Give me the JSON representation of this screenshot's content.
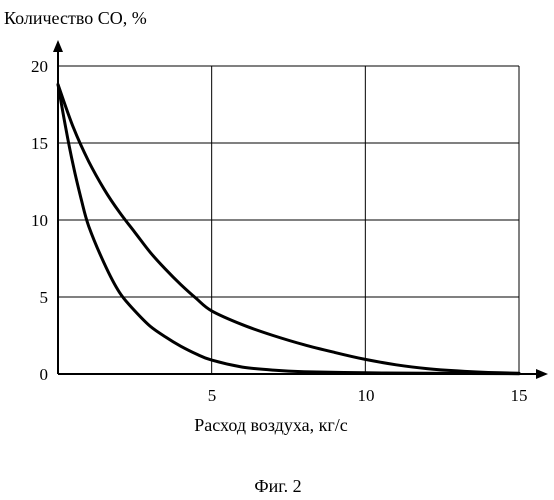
{
  "chart_data": {
    "type": "line",
    "title": "Количество СО, %",
    "xlabel": "Расход воздуха, кг/с",
    "ylabel": "Количество СО, %",
    "caption": "Фиг. 2",
    "xlim": [
      0,
      15
    ],
    "ylim": [
      0,
      20
    ],
    "x_ticks": [
      "5",
      "10",
      "15"
    ],
    "y_ticks": [
      "0",
      "5",
      "10",
      "15",
      "20"
    ],
    "grid": true,
    "series": [
      {
        "x": [
          0,
          0.5,
          1,
          1.5,
          2,
          2.5,
          3,
          3.5,
          4,
          4.5,
          5,
          6,
          7,
          8,
          9,
          10,
          11,
          12,
          13,
          14,
          15
        ],
        "y": [
          18.8,
          16.0,
          13.8,
          12.0,
          10.5,
          9.2,
          7.9,
          6.8,
          5.8,
          4.9,
          4.1,
          3.2,
          2.5,
          1.9,
          1.4,
          0.95,
          0.6,
          0.35,
          0.2,
          0.1,
          0.05
        ]
      },
      {
        "x": [
          0,
          0.25,
          0.5,
          0.75,
          1,
          1.5,
          2,
          2.5,
          3,
          3.5,
          4,
          4.5,
          5,
          6,
          7,
          8,
          10,
          12,
          15
        ],
        "y": [
          18.8,
          16.0,
          13.5,
          11.4,
          9.6,
          7.2,
          5.3,
          4.1,
          3.1,
          2.4,
          1.8,
          1.3,
          0.9,
          0.45,
          0.25,
          0.15,
          0.08,
          0.05,
          0.02
        ]
      }
    ]
  }
}
